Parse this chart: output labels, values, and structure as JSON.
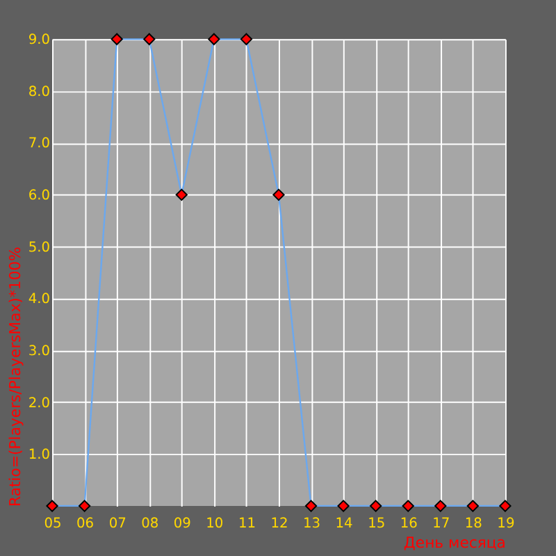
{
  "chart_data": {
    "type": "line",
    "xlabel": "День месяца",
    "ylabel": "Ratio=(Players/PlayersMax)*100%",
    "categories": [
      "05",
      "06",
      "07",
      "08",
      "09",
      "10",
      "11",
      "12",
      "13",
      "14",
      "15",
      "16",
      "17",
      "18",
      "19"
    ],
    "series": [
      {
        "color": "#6aa8f0",
        "values": [
          0,
          0,
          9,
          9,
          6,
          9,
          9,
          6,
          0,
          0,
          0,
          0,
          0,
          0,
          0
        ]
      }
    ],
    "ylim": [
      0,
      9
    ],
    "yticks": [
      {
        "value": 1,
        "label": "1.0"
      },
      {
        "value": 2,
        "label": "2.0"
      },
      {
        "value": 3,
        "label": "3.0"
      },
      {
        "value": 4,
        "label": "4.0"
      },
      {
        "value": 5,
        "label": "5.0"
      },
      {
        "value": 6,
        "label": "6.0"
      },
      {
        "value": 7,
        "label": "7.0"
      },
      {
        "value": 8,
        "label": "8.0"
      },
      {
        "value": 9,
        "label": "9.0"
      }
    ],
    "grid": true,
    "marker": "diamond",
    "line_style": "solid"
  }
}
